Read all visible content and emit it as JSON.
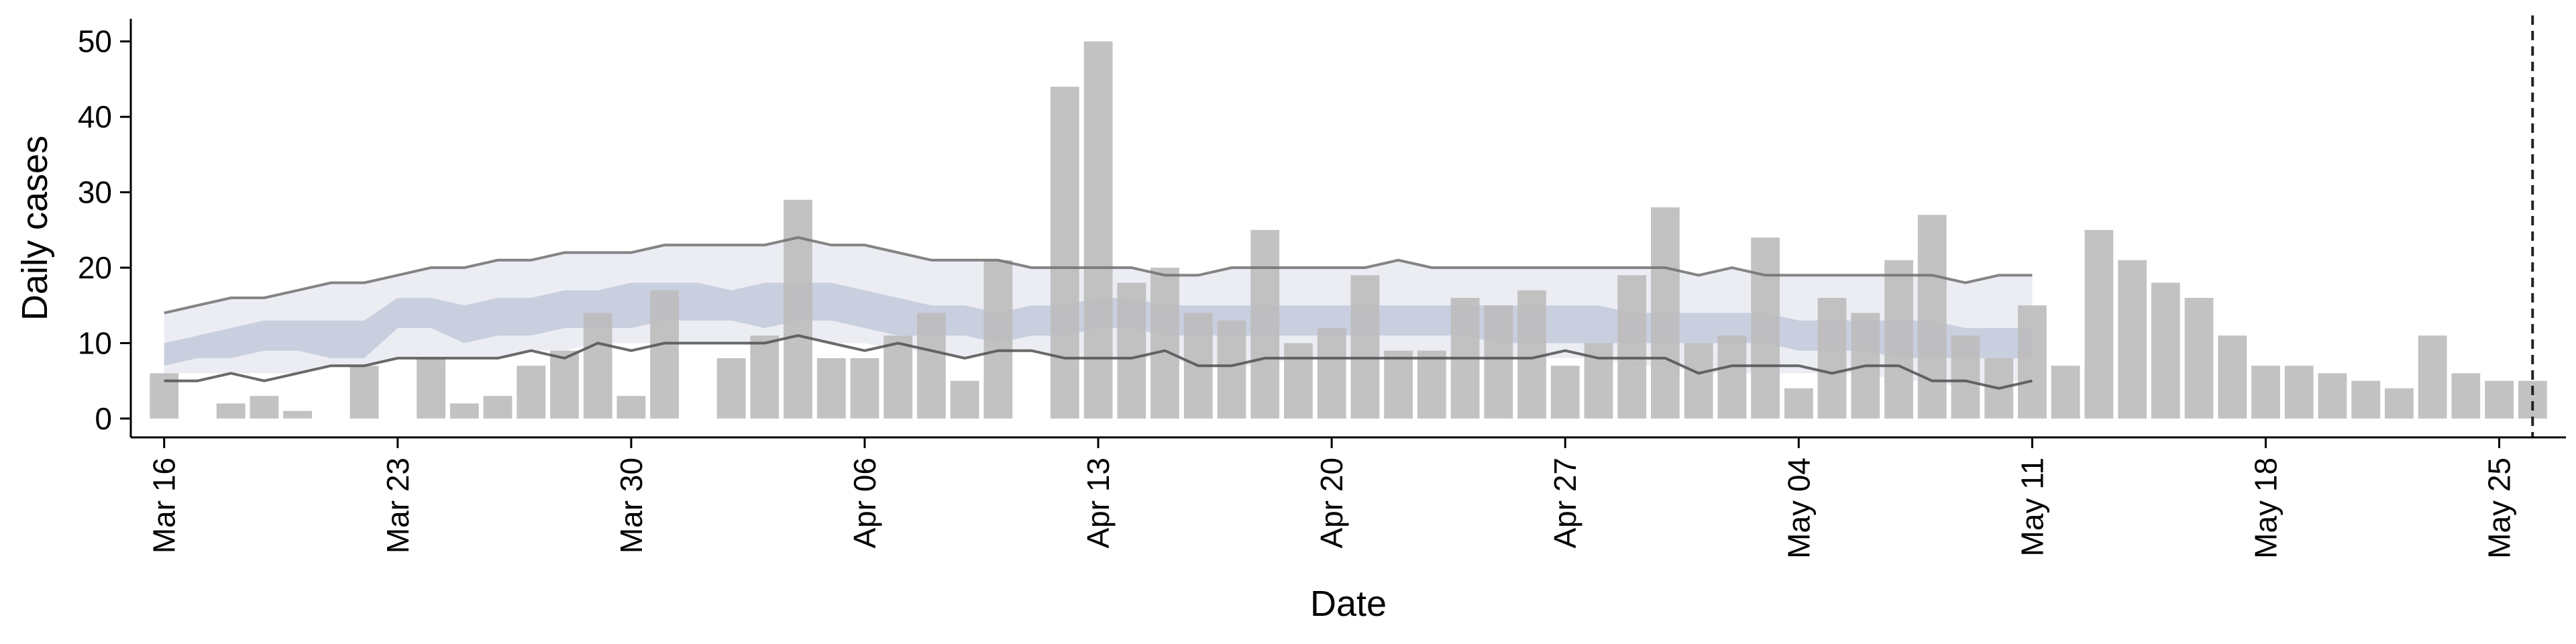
{
  "chart_data": {
    "type": "bar",
    "xlabel": "Date",
    "ylabel": "Daily cases",
    "ylim": [
      -2.5,
      53
    ],
    "yticks": [
      0,
      10,
      20,
      30,
      40,
      50
    ],
    "x_start": "2020-03-16",
    "xlim": [
      "2020-03-15",
      "2020-05-27"
    ],
    "xticks": [
      {
        "date": "2020-03-16",
        "label": "Mar 16"
      },
      {
        "date": "2020-03-23",
        "label": "Mar 23"
      },
      {
        "date": "2020-03-30",
        "label": "Mar 30"
      },
      {
        "date": "2020-04-06",
        "label": "Apr 06"
      },
      {
        "date": "2020-04-13",
        "label": "Apr 13"
      },
      {
        "date": "2020-04-20",
        "label": "Apr 20"
      },
      {
        "date": "2020-04-27",
        "label": "Apr 27"
      },
      {
        "date": "2020-05-04",
        "label": "May 04"
      },
      {
        "date": "2020-05-11",
        "label": "May 11"
      },
      {
        "date": "2020-05-18",
        "label": "May 18"
      },
      {
        "date": "2020-05-25",
        "label": "May 25"
      }
    ],
    "reference_line_date": "2020-05-26",
    "grid": false,
    "legend": "none",
    "colors": {
      "bar": "#bdbdbd",
      "band_outer": "#e9ebf2",
      "band_inner": "#c5cbdd",
      "upper_line": "#707070",
      "lower_line": "#505050",
      "reference_line": "#222222",
      "axis": "#000000"
    },
    "daily_cases": [
      6,
      0,
      2,
      3,
      1,
      0,
      7,
      0,
      8,
      2,
      3,
      7,
      9,
      14,
      3,
      17,
      0,
      8,
      11,
      29,
      8,
      8,
      11,
      14,
      5,
      21,
      0,
      44,
      50,
      18,
      20,
      14,
      13,
      25,
      10,
      12,
      19,
      9,
      9,
      16,
      15,
      17,
      7,
      10,
      19,
      28,
      10,
      11,
      24,
      4,
      16,
      14,
      21,
      27,
      11,
      8,
      15,
      7,
      25,
      21,
      18,
      16,
      11,
      7,
      7,
      6,
      5,
      4,
      11,
      6,
      5,
      5
    ],
    "band_outer_upper": [
      14,
      15,
      16,
      16,
      17,
      18,
      18,
      19,
      20,
      20,
      21,
      21,
      22,
      22,
      22,
      23,
      23,
      23,
      23,
      24,
      23,
      23,
      22,
      21,
      21,
      21,
      20,
      20,
      20,
      20,
      19,
      19,
      20,
      20,
      20,
      20,
      20,
      21,
      20,
      20,
      20,
      20,
      20,
      20,
      20,
      20,
      19,
      20,
      19,
      19,
      19,
      19,
      19,
      19,
      18,
      19,
      19
    ],
    "band_inner_upper": [
      10,
      11,
      12,
      13,
      13,
      13,
      13,
      16,
      16,
      15,
      16,
      16,
      17,
      17,
      18,
      18,
      18,
      17,
      18,
      18,
      18,
      17,
      16,
      15,
      15,
      14,
      15,
      15,
      16,
      16,
      15,
      15,
      15,
      15,
      15,
      15,
      15,
      15,
      15,
      15,
      15,
      15,
      15,
      15,
      14,
      14,
      14,
      14,
      14,
      13,
      13,
      13,
      13,
      13,
      12,
      12,
      12
    ],
    "band_inner_lower": [
      7,
      8,
      8,
      9,
      9,
      8,
      8,
      12,
      12,
      10,
      11,
      11,
      12,
      12,
      12,
      13,
      13,
      13,
      12,
      13,
      13,
      12,
      11,
      11,
      11,
      10,
      11,
      11,
      12,
      12,
      11,
      11,
      11,
      11,
      11,
      11,
      11,
      11,
      11,
      11,
      10,
      10,
      10,
      10,
      10,
      10,
      10,
      10,
      10,
      9,
      9,
      9,
      8,
      8,
      8,
      8,
      8
    ],
    "band_outer_lower": [
      6,
      6,
      6,
      6,
      6,
      7,
      7,
      8,
      8,
      8,
      8,
      9,
      9,
      10,
      10,
      10,
      10,
      10,
      10,
      11,
      10,
      10,
      9,
      9,
      8,
      9,
      9,
      8,
      8,
      8,
      8,
      7,
      7,
      7,
      8,
      8,
      8,
      8,
      8,
      8,
      8,
      8,
      8,
      8,
      7,
      7,
      6,
      6,
      6,
      6,
      6,
      6,
      5,
      5,
      4,
      5,
      5
    ],
    "upper_line": [
      14,
      15,
      16,
      16,
      17,
      18,
      18,
      19,
      20,
      20,
      21,
      21,
      22,
      22,
      22,
      23,
      23,
      23,
      23,
      24,
      23,
      23,
      22,
      21,
      21,
      21,
      20,
      20,
      20,
      20,
      19,
      19,
      20,
      20,
      20,
      20,
      20,
      21,
      20,
      20,
      20,
      20,
      20,
      20,
      20,
      20,
      19,
      20,
      19,
      19,
      19,
      19,
      19,
      19,
      18,
      19,
      19
    ],
    "lower_line": [
      5,
      5,
      6,
      5,
      6,
      7,
      7,
      8,
      8,
      8,
      8,
      9,
      8,
      10,
      9,
      10,
      10,
      10,
      10,
      11,
      10,
      9,
      10,
      9,
      8,
      9,
      9,
      8,
      8,
      8,
      9,
      7,
      7,
      8,
      8,
      8,
      8,
      8,
      8,
      8,
      8,
      8,
      9,
      8,
      8,
      8,
      6,
      7,
      7,
      7,
      6,
      7,
      7,
      5,
      5,
      4,
      5
    ]
  }
}
